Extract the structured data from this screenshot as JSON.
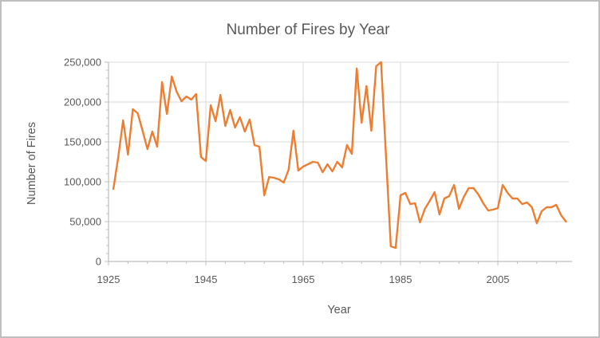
{
  "title": "Number of Fires by Year",
  "x_axis": {
    "label": "Year",
    "ticks": [
      {
        "label": "1925",
        "value": 1925
      },
      {
        "label": "1945",
        "value": 1945
      },
      {
        "label": "1965",
        "value": 1965
      },
      {
        "label": "1985",
        "value": 1985
      },
      {
        "label": "2005",
        "value": 2005
      }
    ]
  },
  "y_axis": {
    "label": "Number of Fires",
    "ticks": [
      {
        "label": "0",
        "value": 0
      },
      {
        "label": "50,000",
        "value": 50000
      },
      {
        "label": "100,000",
        "value": 100000
      },
      {
        "label": "150,000",
        "value": 150000
      },
      {
        "label": "200,000",
        "value": 200000
      },
      {
        "label": "250,000",
        "value": 250000
      }
    ]
  },
  "colors": {
    "line": "#ED7D31",
    "gridline": "#D9D9D9",
    "axis_line": "#BFBFBF",
    "text": "#595959",
    "frame_border": "#BFBFBF",
    "background": "#FFFFFF"
  },
  "chart_data": {
    "type": "line",
    "title": "Number of Fires by Year",
    "xlabel": "Year",
    "ylabel": "Number of Fires",
    "xlim": [
      1925,
      2021
    ],
    "ylim": [
      0,
      250000
    ],
    "grid": true,
    "legend_position": "none",
    "series": [
      {
        "name": "Number of Fires",
        "color": "#ED7D31",
        "x": [
          1926,
          1927,
          1928,
          1929,
          1930,
          1931,
          1932,
          1933,
          1934,
          1935,
          1936,
          1937,
          1938,
          1939,
          1940,
          1941,
          1942,
          1943,
          1944,
          1945,
          1946,
          1947,
          1948,
          1949,
          1950,
          1951,
          1952,
          1953,
          1954,
          1955,
          1956,
          1957,
          1958,
          1959,
          1960,
          1961,
          1962,
          1963,
          1964,
          1965,
          1966,
          1967,
          1968,
          1969,
          1970,
          1971,
          1972,
          1973,
          1974,
          1975,
          1976,
          1977,
          1978,
          1979,
          1980,
          1981,
          1982,
          1983,
          1984,
          1985,
          1986,
          1987,
          1988,
          1989,
          1990,
          1991,
          1992,
          1993,
          1994,
          1995,
          1996,
          1997,
          1998,
          1999,
          2000,
          2001,
          2002,
          2003,
          2004,
          2005,
          2006,
          2007,
          2008,
          2009,
          2010,
          2011,
          2012,
          2013,
          2014,
          2015,
          2016,
          2017,
          2018,
          2019
        ],
        "values": [
          91000,
          131000,
          177000,
          134000,
          191000,
          186000,
          164000,
          141000,
          163000,
          144000,
          225000,
          185000,
          232000,
          213000,
          201000,
          207000,
          203000,
          210000,
          131000,
          126000,
          196000,
          176000,
          209000,
          170000,
          190000,
          168000,
          181000,
          163000,
          178000,
          146000,
          144000,
          83000,
          106000,
          105000,
          103000,
          99000,
          115000,
          164000,
          114000,
          119000,
          122000,
          125000,
          124000,
          112000,
          122000,
          113000,
          125000,
          118000,
          146000,
          135000,
          242000,
          174000,
          220000,
          164000,
          245000,
          250000,
          134000,
          19000,
          17000,
          83000,
          86000,
          72000,
          73000,
          49000,
          66000,
          76000,
          87000,
          59000,
          79000,
          82000,
          96000,
          66000,
          81000,
          92000,
          92000,
          84000,
          73000,
          64000,
          65000,
          67000,
          96000,
          86000,
          79000,
          79000,
          72000,
          74000,
          68000,
          48000,
          63000,
          68000,
          68000,
          71000,
          58000,
          50000
        ]
      }
    ]
  }
}
